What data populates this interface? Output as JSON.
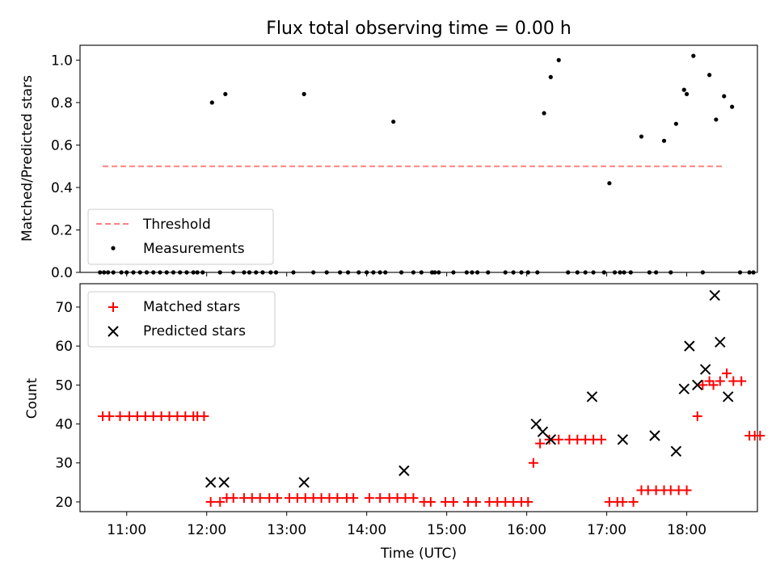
{
  "chart_data": [
    {
      "type": "scatter",
      "title": "Flux total observing time = 0.00 h",
      "xlabel": "",
      "ylabel": "Matched/Predicted stars",
      "xlim": [
        "10:25",
        "18:53"
      ],
      "ylim": [
        0,
        1.07
      ],
      "yticks": [
        "0.0",
        "0.2",
        "0.4",
        "0.6",
        "0.8",
        "1.0"
      ],
      "grid": false,
      "legend_placement": "lower-left",
      "threshold": {
        "name": "Threshold",
        "value": 0.5,
        "x_start": "10:42",
        "x_end": "18:27",
        "color": "#ff8080",
        "style": "dashed"
      },
      "series": [
        {
          "name": "Measurements",
          "color": "#000000",
          "x": [
            "10:40",
            "10:43",
            "10:46",
            "10:50",
            "10:56",
            "11:00",
            "11:05",
            "11:10",
            "11:15",
            "11:20",
            "11:25",
            "11:30",
            "11:35",
            "11:40",
            "11:45",
            "11:50",
            "11:53",
            "11:57",
            "12:04",
            "12:10",
            "12:14",
            "12:20",
            "12:28",
            "12:32",
            "12:37",
            "12:42",
            "12:48",
            "12:52",
            "13:05",
            "13:13",
            "13:20",
            "13:30",
            "13:40",
            "13:46",
            "13:54",
            "14:00",
            "14:05",
            "14:10",
            "14:14",
            "14:20",
            "14:26",
            "14:35",
            "14:41",
            "14:49",
            "14:51",
            "14:54",
            "15:05",
            "15:15",
            "15:19",
            "15:23",
            "15:31",
            "15:44",
            "15:50",
            "15:56",
            "16:01",
            "16:08",
            "16:13",
            "16:18",
            "16:24",
            "16:31",
            "16:38",
            "16:44",
            "16:50",
            "16:58",
            "17:02",
            "17:06",
            "17:10",
            "17:13",
            "17:18",
            "17:26",
            "17:32",
            "17:37",
            "17:43",
            "17:48",
            "17:52",
            "17:58",
            "18:00",
            "18:05",
            "18:12",
            "18:17",
            "18:22",
            "18:28",
            "18:34",
            "18:40",
            "18:47",
            "18:50"
          ],
          "y": [
            0,
            0,
            0,
            0,
            0,
            0,
            0,
            0,
            0,
            0,
            0,
            0,
            0,
            0,
            0,
            0,
            0,
            0,
            0.8,
            0,
            0.84,
            0,
            0,
            0,
            0,
            0,
            0,
            0,
            0,
            0.84,
            0,
            0,
            0,
            0,
            0,
            0,
            0,
            0,
            0,
            0.71,
            0,
            0,
            0,
            0,
            0,
            0,
            0,
            0,
            0,
            0,
            0,
            0,
            0,
            0,
            0,
            0,
            0.75,
            0.92,
            1.0,
            0,
            0,
            0,
            0,
            0,
            0.42,
            0,
            0,
            0,
            0,
            0.64,
            0,
            0,
            0.62,
            0,
            0.7,
            0.86,
            0.84,
            1.02,
            0,
            0.93,
            0.72,
            0.83,
            0.78,
            0,
            0,
            0
          ]
        }
      ]
    },
    {
      "type": "scatter",
      "title": "",
      "xlabel": "Time (UTC)",
      "ylabel": "Count",
      "xlim": [
        "10:25",
        "18:53"
      ],
      "ylim": [
        17.5,
        76
      ],
      "yticks": [
        "20",
        "30",
        "40",
        "50",
        "60",
        "70"
      ],
      "xticks": [
        "11:00",
        "12:00",
        "13:00",
        "14:00",
        "15:00",
        "16:00",
        "17:00",
        "18:00"
      ],
      "grid": false,
      "legend_placement": "upper-left",
      "series": [
        {
          "name": "Matched stars",
          "color": "#ff0000",
          "marker": "+",
          "x": [
            "10:42",
            "10:47",
            "10:55",
            "11:02",
            "11:08",
            "11:14",
            "11:20",
            "11:26",
            "11:32",
            "11:38",
            "11:44",
            "11:50",
            "11:53",
            "11:58",
            "12:03",
            "12:10",
            "12:15",
            "12:20",
            "12:28",
            "12:34",
            "12:40",
            "12:47",
            "12:53",
            "13:02",
            "13:08",
            "13:14",
            "13:20",
            "13:26",
            "13:32",
            "13:38",
            "13:45",
            "13:50",
            "14:02",
            "14:10",
            "14:17",
            "14:23",
            "14:29",
            "14:35",
            "14:43",
            "14:48",
            "14:59",
            "15:05",
            "15:16",
            "15:22",
            "15:32",
            "15:38",
            "15:44",
            "15:50",
            "15:56",
            "16:01",
            "16:05",
            "16:10",
            "16:17",
            "16:24",
            "16:32",
            "16:38",
            "16:44",
            "16:50",
            "16:56",
            "17:02",
            "17:08",
            "17:12",
            "17:20",
            "17:26",
            "17:31",
            "17:37",
            "17:43",
            "17:48",
            "17:54",
            "18:00",
            "18:08",
            "18:12",
            "18:17",
            "18:20",
            "18:25",
            "18:30",
            "18:35",
            "18:41",
            "18:47",
            "18:51",
            "18:55"
          ],
          "y": [
            42,
            42,
            42,
            42,
            42,
            42,
            42,
            42,
            42,
            42,
            42,
            42,
            42,
            42,
            20,
            20,
            21,
            21,
            21,
            21,
            21,
            21,
            21,
            21,
            21,
            21,
            21,
            21,
            21,
            21,
            21,
            21,
            21,
            21,
            21,
            21,
            21,
            21,
            20,
            20,
            20,
            20,
            20,
            20,
            20,
            20,
            20,
            20,
            20,
            20,
            30,
            35,
            36,
            36,
            36,
            36,
            36,
            36,
            36,
            20,
            20,
            20,
            20,
            23,
            23,
            23,
            23,
            23,
            23,
            23,
            42,
            50,
            51,
            50,
            51,
            53,
            51,
            51,
            37,
            37,
            37
          ]
        },
        {
          "name": "Predicted stars",
          "color": "#000000",
          "marker": "x",
          "x": [
            "12:03",
            "12:13",
            "13:13",
            "14:28",
            "16:07",
            "16:12",
            "16:18",
            "16:49",
            "17:12",
            "17:36",
            "17:52",
            "17:58",
            "18:02",
            "18:08",
            "18:14",
            "18:21",
            "18:25",
            "18:31"
          ],
          "y": [
            25,
            25,
            25,
            28,
            40,
            38,
            36,
            47,
            36,
            37,
            33,
            49,
            60,
            50,
            54,
            73,
            61,
            47
          ]
        }
      ]
    }
  ]
}
